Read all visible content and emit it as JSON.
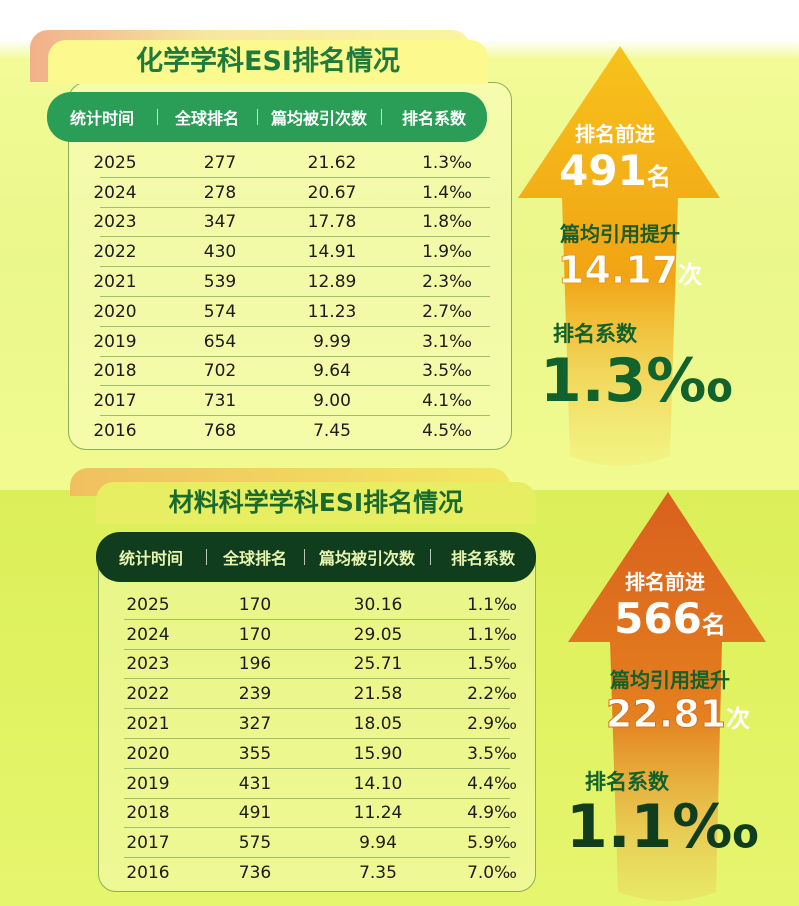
{
  "chem": {
    "title": "化学学科ESI排名情况",
    "headers": [
      "统计时间",
      "全球排名",
      "篇均被引次数",
      "排名系数"
    ],
    "rows": [
      [
        "2025",
        "277",
        "21.62",
        "1.3‰"
      ],
      [
        "2024",
        "278",
        "20.67",
        "1.4‰"
      ],
      [
        "2023",
        "347",
        "17.78",
        "1.8‰"
      ],
      [
        "2022",
        "430",
        "14.91",
        "1.9‰"
      ],
      [
        "2021",
        "539",
        "12.89",
        "2.3‰"
      ],
      [
        "2020",
        "574",
        "11.23",
        "2.7‰"
      ],
      [
        "2019",
        "654",
        "9.99",
        "3.1‰"
      ],
      [
        "2018",
        "702",
        "9.64",
        "3.5‰"
      ],
      [
        "2017",
        "731",
        "9.00",
        "4.1‰"
      ],
      [
        "2016",
        "768",
        "7.45",
        "4.5‰"
      ]
    ],
    "stats": {
      "rank_label": "排名前进",
      "rank_value": "491",
      "rank_unit": "名",
      "cite_label": "篇均引用提升",
      "cite_value": "14.17",
      "cite_unit": "次",
      "coef_label": "排名系数",
      "coef_value": "1.3‰"
    }
  },
  "mat": {
    "title": "材料科学学科ESI排名情况",
    "headers": [
      "统计时间",
      "全球排名",
      "篇均被引次数",
      "排名系数"
    ],
    "rows": [
      [
        "2025",
        "170",
        "30.16",
        "1.1‰"
      ],
      [
        "2024",
        "170",
        "29.05",
        "1.1‰"
      ],
      [
        "2023",
        "196",
        "25.71",
        "1.5‰"
      ],
      [
        "2022",
        "239",
        "21.58",
        "2.2‰"
      ],
      [
        "2021",
        "327",
        "18.05",
        "2.9‰"
      ],
      [
        "2020",
        "355",
        "15.90",
        "3.5‰"
      ],
      [
        "2019",
        "431",
        "14.10",
        "4.4‰"
      ],
      [
        "2018",
        "491",
        "11.24",
        "4.9‰"
      ],
      [
        "2017",
        "575",
        "9.94",
        "5.9‰"
      ],
      [
        "2016",
        "736",
        "7.35",
        "7.0‰"
      ]
    ],
    "stats": {
      "rank_label": "排名前进",
      "rank_value": "566",
      "rank_unit": "名",
      "cite_label": "篇均引用提升",
      "cite_value": "22.81",
      "cite_unit": "次",
      "coef_label": "排名系数",
      "coef_value": "1.1‰"
    }
  },
  "colors": {
    "chem_header": "#2a9e57",
    "mat_header": "#0f3d1e",
    "chem_arrow_top": "#f7c21c",
    "chem_arrow_bottom": "#f0b020",
    "mat_arrow_top": "#d9601d",
    "mat_arrow_bottom": "#f0b235",
    "dark_green": "#11622c",
    "light_green_text": "#2e8a3e"
  }
}
